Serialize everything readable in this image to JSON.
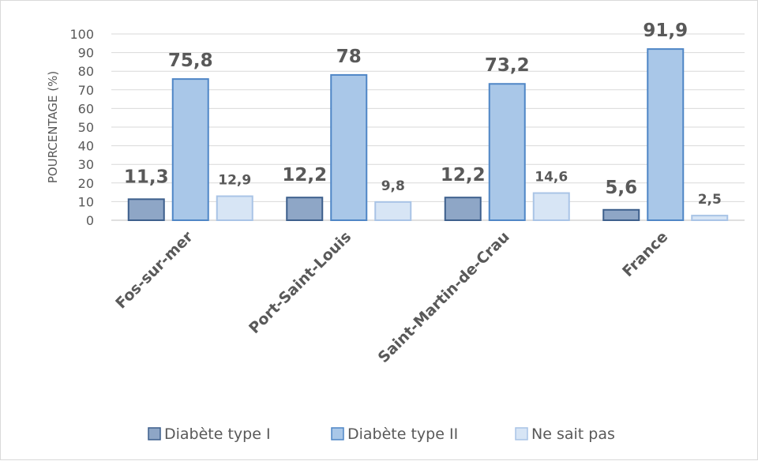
{
  "chart_data": {
    "type": "bar",
    "categories": [
      "Fos-sur-mer",
      "Port-Saint-Louis",
      "Saint-Martin-de-Crau",
      "France"
    ],
    "series": [
      {
        "name": "Diabète type I",
        "values": [
          11.3,
          12.2,
          12.2,
          5.6
        ],
        "labels": [
          "11,3",
          "12,2",
          "12,2",
          "5,6"
        ],
        "color": "#8ea6c6",
        "stroke": "#3d5f8c"
      },
      {
        "name": "Diabète type II",
        "values": [
          75.8,
          78,
          73.2,
          91.9
        ],
        "labels": [
          "75,8",
          "78",
          "73,2",
          "91,9"
        ],
        "color": "#a9c7e8",
        "stroke": "#4f86c6"
      },
      {
        "name": "Ne sait pas",
        "values": [
          12.9,
          9.8,
          14.6,
          2.5
        ],
        "labels": [
          "12,9",
          "9,8",
          "14,6",
          "2,5"
        ],
        "color": "#d7e5f5",
        "stroke": "#a9c4e6"
      }
    ],
    "ylabel": "POURCENTAGE (%)",
    "ylim": [
      0,
      100
    ],
    "yticks": [
      0,
      10,
      20,
      30,
      40,
      50,
      60,
      70,
      80,
      90,
      100
    ],
    "grid": true,
    "legend": "bottom"
  }
}
